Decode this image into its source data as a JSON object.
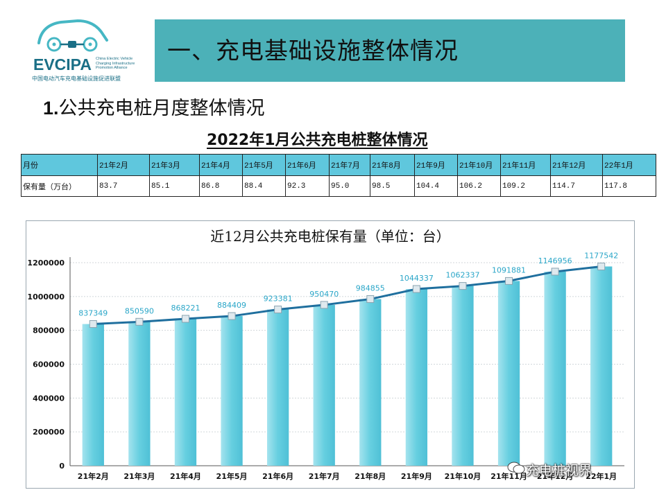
{
  "logo": {
    "wordmark": "EVCIPA",
    "org_en": "China Electric Vehicle Charging Infrastructure Promotion Alliance",
    "org_cn": "中国电动汽车充电基础设施促进联盟"
  },
  "header": {
    "title": "一、充电基础设施整体情况",
    "band_color": "#4cb1b8"
  },
  "section": {
    "number": "1.",
    "title": "公共充电桩月度整体情况"
  },
  "table": {
    "title": "2022年1月公共充电桩整体情况",
    "header_row_label": "月份",
    "value_row_label": "保有量（万台）",
    "months": [
      "21年2月",
      "21年3月",
      "21年4月",
      "21年5月",
      "21年6月",
      "21年7月",
      "21年8月",
      "21年9月",
      "21年10月",
      "21年11月",
      "21年12月",
      "22年1月"
    ],
    "values": [
      "83.7",
      "85.1",
      "86.8",
      "88.4",
      "92.3",
      "95.0",
      "98.5",
      "104.4",
      "106.2",
      "109.2",
      "114.7",
      "117.8"
    ],
    "header_color": "#5fc7dd"
  },
  "chart_data": {
    "type": "bar",
    "title": "近12月公共充电桩保有量（单位：台）",
    "categories": [
      "21年2月",
      "21年3月",
      "21年4月",
      "21年5月",
      "21年6月",
      "21年7月",
      "21年8月",
      "21年9月",
      "21年10月",
      "21年11月",
      "21年12月",
      "22年1月"
    ],
    "series": [
      {
        "type": "bar",
        "values": [
          837349,
          850590,
          868221,
          884409,
          923381,
          950470,
          984855,
          1044337,
          1062337,
          1091881,
          1146956,
          1177542
        ]
      },
      {
        "type": "line",
        "values": [
          837349,
          850590,
          868221,
          884409,
          923381,
          950470,
          984855,
          1044337,
          1062337,
          1091881,
          1146956,
          1177542
        ]
      }
    ],
    "ylim": [
      0,
      1200000
    ],
    "yticks": [
      "0",
      "200000",
      "400000",
      "600000",
      "800000",
      "1000000",
      "1200000"
    ],
    "grid": true,
    "bar_color": "#66cfe0",
    "line_color": "#1f6f9e",
    "label_color": "#2aa6c8"
  },
  "watermark": "充电桩视界"
}
